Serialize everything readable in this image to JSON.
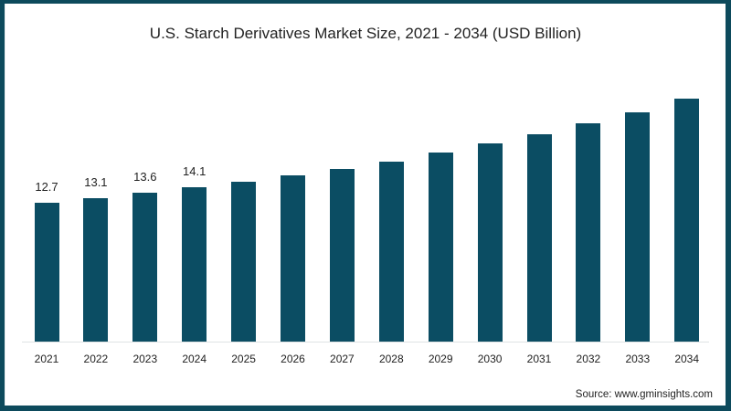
{
  "chart_data": {
    "type": "bar",
    "title": "U.S. Starch Derivatives Market Size, 2021 - 2034 (USD Billion)",
    "xlabel": "",
    "ylabel": "",
    "categories": [
      "2021",
      "2022",
      "2023",
      "2024",
      "2025",
      "2026",
      "2027",
      "2028",
      "2029",
      "2030",
      "2031",
      "2032",
      "2033",
      "2034"
    ],
    "values": [
      12.7,
      13.1,
      13.6,
      14.1,
      14.6,
      15.2,
      15.8,
      16.5,
      17.3,
      18.1,
      19.0,
      20.0,
      21.0,
      22.2
    ],
    "data_labels": [
      "12.7",
      "13.1",
      "13.6",
      "14.1",
      "",
      "",
      "",
      "",
      "",
      "",
      "",
      "",
      "",
      ""
    ],
    "ylim": [
      0,
      24
    ],
    "grid": false,
    "legend": "none",
    "bar_color": "#0b4d63",
    "source": "Source: www.gminsights.com"
  },
  "colors": {
    "frame": "#0d4a5c",
    "bar": "#0b4d63",
    "background": "#ffffff"
  }
}
